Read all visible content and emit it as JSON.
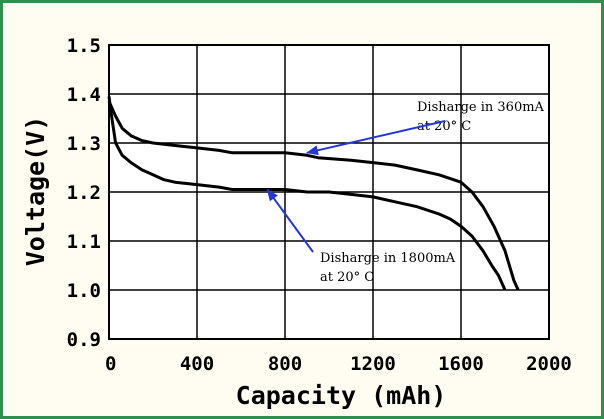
{
  "chart_data": {
    "type": "line",
    "title": "",
    "xlabel": "Capacity (mAh)",
    "ylabel": "Voltage(V)",
    "xlim": [
      0,
      2000
    ],
    "ylim": [
      0.9,
      1.5
    ],
    "x_ticks": [
      "0",
      "400",
      "800",
      "1200",
      "1600",
      "2000"
    ],
    "y_ticks": [
      "0.9",
      "1.0",
      "1.1",
      "1.2",
      "1.3",
      "1.4",
      "1.5"
    ],
    "grid": true,
    "series": [
      {
        "name": "Disharge in 360mA at 20° C",
        "x": [
          0,
          30,
          60,
          100,
          150,
          200,
          300,
          400,
          500,
          560,
          700,
          800,
          900,
          950,
          1100,
          1200,
          1300,
          1400,
          1500,
          1600,
          1650,
          1700,
          1750,
          1780,
          1800,
          1820,
          1840,
          1860
        ],
        "y": [
          1.385,
          1.355,
          1.33,
          1.315,
          1.305,
          1.3,
          1.295,
          1.29,
          1.285,
          1.28,
          1.28,
          1.28,
          1.275,
          1.27,
          1.265,
          1.26,
          1.255,
          1.245,
          1.235,
          1.22,
          1.2,
          1.17,
          1.13,
          1.1,
          1.08,
          1.05,
          1.02,
          1.0
        ]
      },
      {
        "name": "Disharge in 1800mA at 20° C",
        "x": [
          0,
          10,
          30,
          60,
          100,
          150,
          200,
          250,
          300,
          400,
          500,
          560,
          700,
          800,
          900,
          1000,
          1100,
          1200,
          1300,
          1400,
          1500,
          1550,
          1600,
          1650,
          1700,
          1740,
          1770,
          1800
        ],
        "y": [
          1.395,
          1.36,
          1.3,
          1.275,
          1.26,
          1.245,
          1.235,
          1.225,
          1.22,
          1.215,
          1.21,
          1.205,
          1.205,
          1.205,
          1.2,
          1.2,
          1.195,
          1.19,
          1.18,
          1.17,
          1.155,
          1.145,
          1.13,
          1.11,
          1.08,
          1.05,
          1.03,
          1.0
        ]
      }
    ],
    "annotations": [
      {
        "line1": "Disharge in 360mA",
        "line2": "at 20° C",
        "arrow_to": [
          900,
          1.28
        ]
      },
      {
        "line1": "Disharge in 1800mA",
        "line2": "at 20° C",
        "arrow_to": [
          720,
          1.205
        ]
      }
    ],
    "colors": {
      "arrow": "#2436d8",
      "line": "#000000",
      "frame": "#2f8f4f"
    }
  }
}
